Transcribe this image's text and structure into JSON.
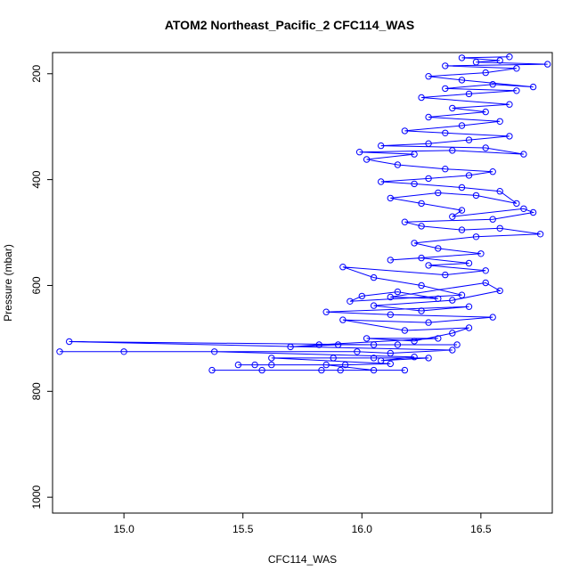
{
  "chart_data": {
    "type": "line",
    "title": "ATOM2 Northeast_Pacific_2 CFC114_WAS",
    "xlabel": "CFC114_WAS",
    "ylabel": "Pressure (mbar)",
    "xlim": [
      14.7,
      16.8
    ],
    "ylim": [
      1030,
      160
    ],
    "y_reversed": true,
    "x_ticks": [
      "15.0",
      "15.5",
      "16.0",
      "16.5"
    ],
    "y_ticks": [
      "200",
      "400",
      "600",
      "800",
      "1000"
    ],
    "grid": false,
    "series_color": "#0000ff",
    "marker": "open-circle",
    "series": [
      {
        "points": [
          [
            16.18,
            760
          ],
          [
            15.37,
            760
          ],
          [
            15.58,
            760
          ],
          [
            15.83,
            760
          ],
          [
            15.91,
            760
          ],
          [
            16.05,
            760
          ],
          [
            15.85,
            750
          ],
          [
            15.55,
            750
          ],
          [
            15.48,
            750
          ],
          [
            15.62,
            750
          ],
          [
            15.93,
            750
          ],
          [
            16.12,
            748
          ],
          [
            15.62,
            737
          ],
          [
            15.88,
            737
          ],
          [
            16.05,
            737
          ],
          [
            16.28,
            737
          ],
          [
            16.08,
            742
          ],
          [
            16.22,
            735
          ],
          [
            15.38,
            725
          ],
          [
            15.0,
            725
          ],
          [
            14.73,
            725
          ],
          [
            15.98,
            725
          ],
          [
            16.12,
            728
          ],
          [
            16.38,
            722
          ],
          [
            14.77,
            706
          ],
          [
            16.05,
            712
          ],
          [
            16.15,
            712
          ],
          [
            16.4,
            712
          ],
          [
            15.9,
            712
          ],
          [
            15.7,
            716
          ],
          [
            15.82,
            712
          ],
          [
            16.32,
            700
          ],
          [
            16.02,
            700
          ],
          [
            16.22,
            705
          ],
          [
            16.38,
            690
          ],
          [
            16.45,
            680
          ],
          [
            16.18,
            685
          ],
          [
            15.92,
            665
          ],
          [
            16.28,
            670
          ],
          [
            16.55,
            660
          ],
          [
            16.12,
            655
          ],
          [
            15.85,
            650
          ],
          [
            16.45,
            640
          ],
          [
            16.25,
            648
          ],
          [
            16.05,
            638
          ],
          [
            16.38,
            628
          ],
          [
            16.58,
            610
          ],
          [
            16.52,
            595
          ],
          [
            16.12,
            622
          ],
          [
            16.32,
            625
          ],
          [
            16.15,
            612
          ],
          [
            16.0,
            620
          ],
          [
            15.95,
            630
          ],
          [
            16.42,
            618
          ],
          [
            16.25,
            600
          ],
          [
            16.05,
            585
          ],
          [
            15.92,
            565
          ],
          [
            16.35,
            580
          ],
          [
            16.52,
            572
          ],
          [
            16.28,
            562
          ],
          [
            16.45,
            558
          ],
          [
            16.25,
            548
          ],
          [
            16.12,
            552
          ],
          [
            16.5,
            540
          ],
          [
            16.32,
            530
          ],
          [
            16.22,
            520
          ],
          [
            16.48,
            508
          ],
          [
            16.75,
            503
          ],
          [
            16.58,
            492
          ],
          [
            16.42,
            495
          ],
          [
            16.25,
            488
          ],
          [
            16.18,
            480
          ],
          [
            16.55,
            475
          ],
          [
            16.72,
            462
          ],
          [
            16.68,
            455
          ],
          [
            16.38,
            470
          ],
          [
            16.42,
            458
          ],
          [
            16.25,
            445
          ],
          [
            16.12,
            435
          ],
          [
            16.32,
            425
          ],
          [
            16.48,
            430
          ],
          [
            16.65,
            445
          ],
          [
            16.58,
            422
          ],
          [
            16.42,
            415
          ],
          [
            16.22,
            408
          ],
          [
            16.08,
            404
          ],
          [
            16.28,
            398
          ],
          [
            16.45,
            392
          ],
          [
            16.55,
            385
          ],
          [
            16.35,
            380
          ],
          [
            16.15,
            372
          ],
          [
            16.02,
            362
          ],
          [
            16.22,
            352
          ],
          [
            15.99,
            348
          ],
          [
            16.38,
            345
          ],
          [
            16.68,
            352
          ],
          [
            16.52,
            340
          ],
          [
            16.08,
            336
          ],
          [
            16.28,
            332
          ],
          [
            16.45,
            325
          ],
          [
            16.62,
            318
          ],
          [
            16.35,
            312
          ],
          [
            16.18,
            308
          ],
          [
            16.42,
            298
          ],
          [
            16.58,
            290
          ],
          [
            16.28,
            282
          ],
          [
            16.52,
            272
          ],
          [
            16.38,
            265
          ],
          [
            16.62,
            258
          ],
          [
            16.25,
            245
          ],
          [
            16.45,
            238
          ],
          [
            16.65,
            232
          ],
          [
            16.35,
            228
          ],
          [
            16.55,
            220
          ],
          [
            16.72,
            225
          ],
          [
            16.42,
            212
          ],
          [
            16.28,
            205
          ],
          [
            16.52,
            198
          ],
          [
            16.65,
            190
          ],
          [
            16.35,
            185
          ],
          [
            16.78,
            182
          ],
          [
            16.48,
            178
          ],
          [
            16.58,
            175
          ],
          [
            16.42,
            170
          ],
          [
            16.62,
            168
          ]
        ]
      }
    ]
  }
}
